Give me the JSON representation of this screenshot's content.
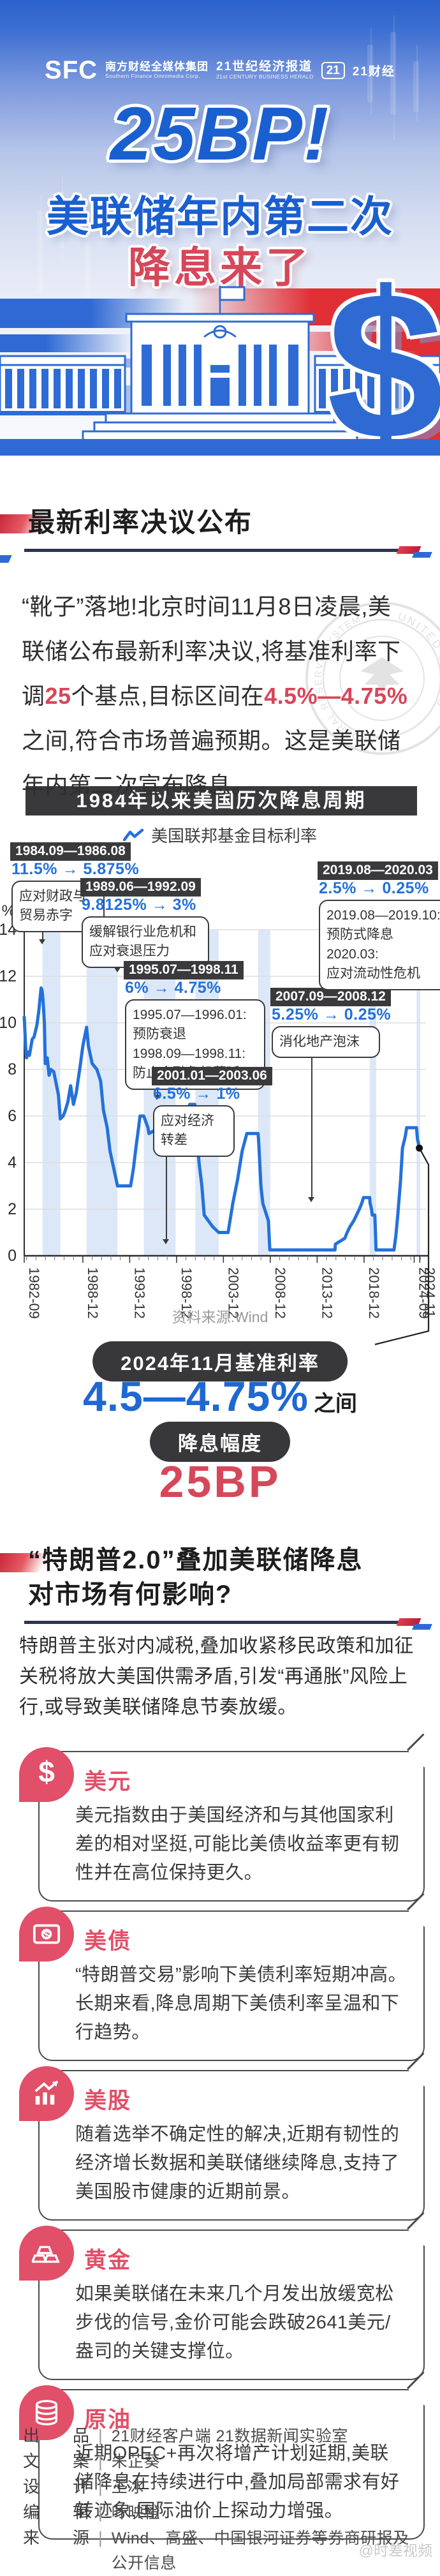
{
  "hero": {
    "logo": {
      "sfc": "SFC",
      "sfc_cn": "南方财经全媒体集团",
      "sfc_en": "Southern Finance Omnimedia Corp.",
      "herald_cn": "21世纪经济报道",
      "herald_en": "21st CENTURY BUSINESS HERALD",
      "badge": "21",
      "app_cn": "21财经"
    },
    "title1": "25BP!",
    "title2": "美联储年内第二次",
    "title3": "降息来了",
    "dollar": "$"
  },
  "section1": {
    "heading": "最新利率决议公布",
    "paragraph": [
      {
        "text": "“靴子”落地!北京时间11月8日凌晨,美联储公布最新利率决议,将基准利率下调"
      },
      {
        "text": "25",
        "red": true
      },
      {
        "text": "个基点,目标区间在"
      },
      {
        "text": "4.5%—4.75%",
        "red": true
      },
      {
        "text": "之间,符合市场普遍预期。这是美联储年内第二次宣布降息。"
      }
    ],
    "seal_top": "UNITED STATES",
    "seal_bottom": "FEDERAL RESERVE SYSTEM"
  },
  "chart": {
    "title": "1984年以来美国历次降息周期",
    "legend_label": "美国联邦基金目标利率",
    "source": "资料来源:Wind",
    "chart_data": {
      "type": "line",
      "title": "1984年以来美国历次降息周期",
      "ylabel": "%",
      "ylim": [
        0,
        14
      ],
      "yticks": [
        0,
        2,
        4,
        6,
        8,
        10,
        12,
        14
      ],
      "xlim": [
        1982.75,
        2025.2
      ],
      "xticks": [
        {
          "pos": 1982.75,
          "label": "1982-09"
        },
        {
          "pos": 1989.0,
          "label": "1988-12"
        },
        {
          "pos": 1994.0,
          "label": "1993-12"
        },
        {
          "pos": 1999.0,
          "label": "1998-12"
        },
        {
          "pos": 2004.0,
          "label": "2003-12"
        },
        {
          "pos": 2009.0,
          "label": "2008-12"
        },
        {
          "pos": 2014.0,
          "label": "2013-12"
        },
        {
          "pos": 2019.0,
          "label": "2018-12"
        },
        {
          "pos": 2024.35,
          "label": "2024-09"
        },
        {
          "pos": 2024.95,
          "label": "2024-11"
        }
      ],
      "cut_bands": [
        [
          1984.7,
          1986.6
        ],
        [
          1989.4,
          1992.7
        ],
        [
          1995.5,
          1998.9
        ],
        [
          2001.0,
          2003.5
        ],
        [
          2007.7,
          2009.0
        ],
        [
          2019.6,
          2020.3
        ],
        [
          2024.6,
          2025.0
        ]
      ],
      "series": [
        {
          "name": "美国联邦基金目标利率",
          "points": [
            [
              1982.75,
              10.25
            ],
            [
              1982.9,
              9.0
            ],
            [
              1983.0,
              8.5
            ],
            [
              1983.1,
              8.75
            ],
            [
              1983.3,
              8.6
            ],
            [
              1983.6,
              9.3
            ],
            [
              1983.8,
              9.4
            ],
            [
              1984.1,
              9.9
            ],
            [
              1984.3,
              10.5
            ],
            [
              1984.55,
              11.5
            ],
            [
              1984.65,
              11.4
            ],
            [
              1984.75,
              11.0
            ],
            [
              1984.9,
              10.0
            ],
            [
              1985.0,
              8.25
            ],
            [
              1985.2,
              8.5
            ],
            [
              1985.4,
              7.75
            ],
            [
              1985.6,
              8.0
            ],
            [
              1985.9,
              7.9
            ],
            [
              1986.2,
              7.3
            ],
            [
              1986.4,
              6.9
            ],
            [
              1986.6,
              5.875
            ],
            [
              1986.9,
              6.0
            ],
            [
              1987.1,
              6.2
            ],
            [
              1987.4,
              6.6
            ],
            [
              1987.7,
              7.3
            ],
            [
              1987.85,
              6.9
            ],
            [
              1988.0,
              6.5
            ],
            [
              1988.3,
              7.0
            ],
            [
              1988.7,
              8.1
            ],
            [
              1989.0,
              9.0
            ],
            [
              1989.4,
              9.8125
            ],
            [
              1989.6,
              9.0
            ],
            [
              1990.0,
              8.25
            ],
            [
              1990.5,
              8.0
            ],
            [
              1990.9,
              7.5
            ],
            [
              1991.2,
              6.25
            ],
            [
              1991.6,
              5.5
            ],
            [
              1991.9,
              4.5
            ],
            [
              1992.3,
              3.75
            ],
            [
              1992.7,
              3.0
            ],
            [
              1994.1,
              3.0
            ],
            [
              1994.4,
              3.75
            ],
            [
              1994.7,
              4.75
            ],
            [
              1994.95,
              5.5
            ],
            [
              1995.1,
              6.0
            ],
            [
              1995.5,
              6.0
            ],
            [
              1995.95,
              5.5
            ],
            [
              1996.05,
              5.25
            ],
            [
              1997.2,
              5.5
            ],
            [
              1998.7,
              5.5
            ],
            [
              1998.78,
              5.25
            ],
            [
              1998.86,
              5.0
            ],
            [
              1998.95,
              4.75
            ],
            [
              1999.5,
              5.0
            ],
            [
              1999.9,
              5.5
            ],
            [
              2000.4,
              6.5
            ],
            [
              2000.95,
              6.5
            ],
            [
              2001.05,
              6.0
            ],
            [
              2001.2,
              5.0
            ],
            [
              2001.4,
              4.0
            ],
            [
              2001.7,
              3.0
            ],
            [
              2001.95,
              1.75
            ],
            [
              2002.85,
              1.25
            ],
            [
              2003.5,
              1.0
            ],
            [
              2004.5,
              1.0
            ],
            [
              2004.7,
              1.5
            ],
            [
              2005.0,
              2.25
            ],
            [
              2005.5,
              3.25
            ],
            [
              2006.0,
              4.5
            ],
            [
              2006.5,
              5.25
            ],
            [
              2007.7,
              5.25
            ],
            [
              2007.78,
              4.75
            ],
            [
              2008.0,
              3.0
            ],
            [
              2008.2,
              2.25
            ],
            [
              2008.4,
              2.0
            ],
            [
              2008.8,
              1.5
            ],
            [
              2008.95,
              0.25
            ],
            [
              2015.9,
              0.25
            ],
            [
              2015.95,
              0.5
            ],
            [
              2016.95,
              0.75
            ],
            [
              2017.2,
              1.0
            ],
            [
              2017.5,
              1.25
            ],
            [
              2017.9,
              1.5
            ],
            [
              2018.2,
              1.75
            ],
            [
              2018.5,
              2.0
            ],
            [
              2018.75,
              2.25
            ],
            [
              2018.95,
              2.5
            ],
            [
              2019.6,
              2.5
            ],
            [
              2019.65,
              2.25
            ],
            [
              2019.8,
              2.0
            ],
            [
              2019.88,
              1.75
            ],
            [
              2020.15,
              1.75
            ],
            [
              2020.2,
              1.25
            ],
            [
              2020.28,
              0.25
            ],
            [
              2022.2,
              0.25
            ],
            [
              2022.4,
              0.875
            ],
            [
              2022.6,
              1.75
            ],
            [
              2022.75,
              2.5
            ],
            [
              2022.9,
              3.25
            ],
            [
              2023.1,
              4.625
            ],
            [
              2023.4,
              5.125
            ],
            [
              2023.55,
              5.5
            ],
            [
              2024.6,
              5.5
            ],
            [
              2024.7,
              5.0
            ],
            [
              2024.78,
              4.875
            ],
            [
              2024.9,
              4.625
            ]
          ]
        }
      ],
      "end_point": {
        "x": 2024.9,
        "y": 4.625
      },
      "annotations": [
        {
          "period": "1984.09—1986.08",
          "change": "11.5% → 5.875%",
          "note": "应对财政与\n贸易赤字",
          "pos": {
            "x": 16,
            "y": 0
          },
          "note_w": 122,
          "conn": {
            "x": 66,
            "y1": 134,
            "y2": 152
          }
        },
        {
          "period": "1989.06—1992.09",
          "change": "9.8125% → 3%",
          "note": "缓解银行业危机和\n应对衰退压力",
          "pos": {
            "x": 126,
            "y": 56
          },
          "note_w": 176,
          "conn": {
            "x": 184,
            "y1": 182,
            "y2": 196
          }
        },
        {
          "period": "1995.07—1998.11",
          "change": "6% → 4.75%",
          "note": "1995.07—1996.01:\n预防衰退\n1998.09—1998.11:\n防止金融危机蔓延",
          "pos": {
            "x": 194,
            "y": 186
          },
          "note_w": 196,
          "conn": {
            "x": 246,
            "y1": 382,
            "y2": 396
          }
        },
        {
          "period": "2001.01—2003.06",
          "change": "6.5% → 1%",
          "note": "应对经济\n转差",
          "pos": {
            "x": 238,
            "y": 352
          },
          "note_w": 104,
          "conn": {
            "x": 260,
            "y1": 490,
            "y2": 622
          }
        },
        {
          "period": "2007.09—2008.12",
          "change": "5.25% → 0.25%",
          "note": "消化地产泡沫",
          "pos": {
            "x": 424,
            "y": 228
          },
          "note_w": 146,
          "conn": {
            "x": 488,
            "y1": 334,
            "y2": 556
          }
        },
        {
          "period": "2019.08—2020.03",
          "change": "2.5% → 0.25%",
          "note": "2019.08—2019.10:\n预防式降息\n2020.03:\n应对流动性危机",
          "pos": {
            "x": 498,
            "y": 30
          },
          "note_w": 182,
          "conn": {
            "x": 578,
            "y1": 212,
            "y2": 224
          }
        }
      ]
    }
  },
  "rate_box": {
    "label1": "2024年11月基准利率",
    "value": "4.5—4.75%",
    "suffix": "之间",
    "label2": "降息幅度",
    "value2": "25BP"
  },
  "section2": {
    "heading_line1": "“特朗普2.0”叠加美联储降息",
    "heading_line2": "对市场有何影响?",
    "paragraph": "特朗普主张对内减税,叠加收紧移民政策和加征关税将放大美国供需矛盾,引发“再通胀”风险上行,或导致美联储降息节奏放缓。"
  },
  "cards": [
    {
      "key": "usd",
      "icon": "dollar-icon",
      "title": "美元",
      "body": "美元指数由于美国经济和与其他国家利差的相对坚挺,可能比美债收益率更有韧性并在高位保持更久。"
    },
    {
      "key": "us-bonds",
      "icon": "banknote-icon",
      "title": "美债",
      "body": "“特朗普交易”影响下美债利率短期冲高。长期来看,降息周期下美债利率呈温和下行趋势。"
    },
    {
      "key": "us-stocks",
      "icon": "stock-chart-icon",
      "title": "美股",
      "body": "随着选举不确定性的解决,近期有韧性的经济增长数据和美联储继续降息,支持了美国股市健康的近期前景。"
    },
    {
      "key": "gold",
      "icon": "gold-bars-icon",
      "title": "黄金",
      "body": "如果美联储在未来几个月发出放缓宽松步伐的信号,金价可能会跌破2641美元/盎司的关键支撑位。"
    },
    {
      "key": "crude-oil",
      "icon": "oil-barrel-icon",
      "title": "原油",
      "body": "近期OPEC+再次将增产计划延期,美联储降息在持续进行中,叠加局部需求有好转迹象,国际油价上探动力增强。"
    }
  ],
  "footer": {
    "rows": [
      {
        "label": "出品",
        "value": "21财经客户端 21数据新闻实验室"
      },
      {
        "label": "文案",
        "value": "朱芷葵"
      },
      {
        "label": "设计",
        "value": "王冰"
      },
      {
        "label": "编辑",
        "value": "叶映橙"
      },
      {
        "label": "来源",
        "value": "Wind、高盛、中国银河证券等券商研报及公开信息"
      }
    ]
  },
  "watermark": {
    "text": "@时差视频"
  },
  "colors": {
    "accent_blue": "#1E63CE",
    "accent_red": "#D6475A",
    "card_red": "#E14F68",
    "dark_box": "#39393B",
    "chart_line": "#2471DB",
    "chart_band": "#DCE8F7"
  }
}
